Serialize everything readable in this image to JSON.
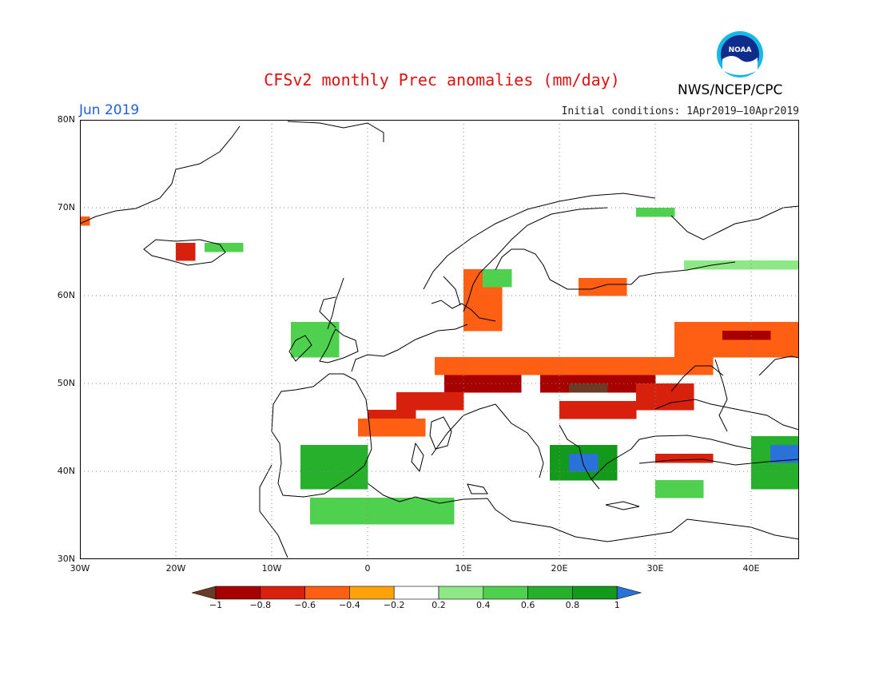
{
  "header": {
    "title": "CFSv2 monthly Prec anomalies (mm/day)",
    "month": "Jun 2019",
    "initial_conditions": "Initial conditions: 1Apr2019–10Apr2019",
    "org": "NWS/NCEP/CPC",
    "logo_text": "NOAA"
  },
  "map": {
    "y_labels": [
      "80N",
      "70N",
      "60N",
      "50N",
      "40N",
      "30N"
    ],
    "x_labels": [
      "30W",
      "20W",
      "10W",
      "0",
      "10E",
      "20E",
      "30E",
      "40E"
    ]
  },
  "legend": {
    "labels": [
      "−1",
      "−0.8",
      "−0.6",
      "−0.4",
      "−0.2",
      "0.2",
      "0.4",
      "0.6",
      "0.8",
      "1"
    ],
    "colors": [
      "#6b3b27",
      "#a80000",
      "#d8210c",
      "#ff5f12",
      "#ffa20a",
      "#ffffff",
      "#8fe886",
      "#4fd04f",
      "#26b02c",
      "#149a1a",
      "#2a72d8"
    ]
  },
  "chart_data": {
    "type": "heatmap",
    "region": "Europe",
    "lon_range": [
      -30,
      45
    ],
    "lat_range": [
      30,
      80
    ],
    "cell_deg": 1,
    "blobs": [
      {
        "lon0": 8,
        "lon1": 16,
        "lat0": 49,
        "lat1": 51,
        "level": -0.8
      },
      {
        "lon0": 18,
        "lon1": 30,
        "lat0": 49,
        "lat1": 51,
        "level": -0.8
      },
      {
        "lon0": 21,
        "lon1": 25,
        "lat0": 49,
        "lat1": 50,
        "level": -1
      },
      {
        "lon0": 28,
        "lon1": 34,
        "lat0": 47,
        "lat1": 50,
        "level": -0.6
      },
      {
        "lon0": 3,
        "lon1": 10,
        "lat0": 47,
        "lat1": 49,
        "level": -0.6
      },
      {
        "lon0": 20,
        "lon1": 28,
        "lat0": 46,
        "lat1": 48,
        "level": -0.6
      },
      {
        "lon0": 0,
        "lon1": 5,
        "lat0": 45,
        "lat1": 47,
        "level": -0.6
      },
      {
        "lon0": 7,
        "lon1": 36,
        "lat0": 51,
        "lat1": 53,
        "level": -0.4
      },
      {
        "lon0": 32,
        "lon1": 45,
        "lat0": 53,
        "lat1": 57,
        "level": -0.4
      },
      {
        "lon0": 37,
        "lon1": 42,
        "lat0": 55,
        "lat1": 56,
        "level": -0.8
      },
      {
        "lon0": 10,
        "lon1": 14,
        "lat0": 56,
        "lat1": 63,
        "level": -0.4
      },
      {
        "lon0": 22,
        "lon1": 27,
        "lat0": 60,
        "lat1": 62,
        "level": -0.4
      },
      {
        "lon0": -1,
        "lon1": 6,
        "lat0": 44,
        "lat1": 46,
        "level": -0.4
      },
      {
        "lon0": 30,
        "lon1": 36,
        "lat0": 41,
        "lat1": 42,
        "level": -0.6
      },
      {
        "lon0": -20,
        "lon1": -18,
        "lat0": 64,
        "lat1": 66,
        "level": -0.6
      },
      {
        "lon0": -30,
        "lon1": -29,
        "lat0": 68,
        "lat1": 69,
        "level": -0.4
      },
      {
        "lon0": -7,
        "lon1": 0,
        "lat0": 38,
        "lat1": 43,
        "level": 0.6
      },
      {
        "lon0": -6,
        "lon1": 9,
        "lat0": 34,
        "lat1": 37,
        "level": 0.4
      },
      {
        "lon0": 19,
        "lon1": 26,
        "lat0": 39,
        "lat1": 43,
        "level": 0.8
      },
      {
        "lon0": 21,
        "lon1": 24,
        "lat0": 40,
        "lat1": 42,
        "level": 1
      },
      {
        "lon0": 30,
        "lon1": 35,
        "lat0": 37,
        "lat1": 39,
        "level": 0.4
      },
      {
        "lon0": 40,
        "lon1": 45,
        "lat0": 38,
        "lat1": 44,
        "level": 0.6
      },
      {
        "lon0": 42,
        "lon1": 45,
        "lat0": 41,
        "lat1": 43,
        "level": 1
      },
      {
        "lon0": -8,
        "lon1": -3,
        "lat0": 53,
        "lat1": 57,
        "level": 0.4
      },
      {
        "lon0": -17,
        "lon1": -13,
        "lat0": 65,
        "lat1": 66,
        "level": 0.4
      },
      {
        "lon0": 33,
        "lon1": 45,
        "lat0": 63,
        "lat1": 64,
        "level": 0.2
      },
      {
        "lon0": 28,
        "lon1": 32,
        "lat0": 69,
        "lat1": 70,
        "level": 0.4
      },
      {
        "lon0": 12,
        "lon1": 15,
        "lat0": 61,
        "lat1": 63,
        "level": 0.4
      }
    ]
  }
}
